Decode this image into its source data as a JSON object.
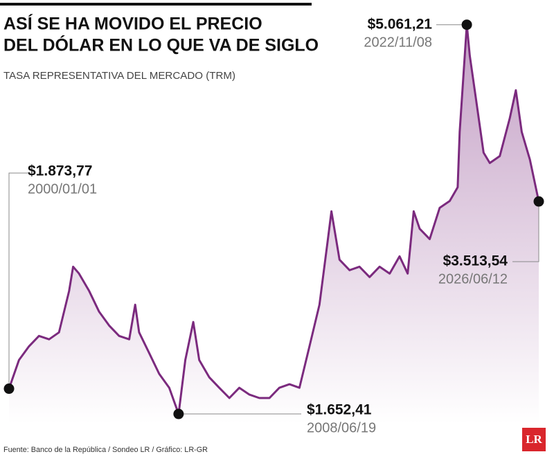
{
  "chart_data": {
    "type": "line",
    "title_lines": [
      "ASÍ SE HA MOVIDO EL PRECIO",
      "DEL DÓLAR EN LO QUE VA DE SIGLO"
    ],
    "subtitle": "TASA REPRESENTATIVA DEL MERCADO (TRM)",
    "source": "Fuente: Banco de la República / Sondeo LR / Gráfico: LR-GR",
    "logo": "LR",
    "series": [
      {
        "color": "#7b2a7e",
        "x": [
          "2000/01/01",
          "2000/07/01",
          "2001/01/01",
          "2001/07/01",
          "2002/01/01",
          "2002/07/01",
          "2003/01/01",
          "2003/03/15",
          "2003/07/01",
          "2004/01/01",
          "2004/07/01",
          "2005/01/01",
          "2005/07/01",
          "2006/01/01",
          "2006/04/20",
          "2006/07/01",
          "2007/01/01",
          "2007/07/01",
          "2008/01/01",
          "2008/06/19",
          "2008/10/20",
          "2009/03/15",
          "2009/07/01",
          "2010/01/01",
          "2010/07/01",
          "2011/01/01",
          "2011/07/01",
          "2012/01/01",
          "2012/07/01",
          "2013/01/01",
          "2013/07/01",
          "2014/01/01",
          "2014/07/01",
          "2015/01/01",
          "2015/07/01",
          "2015/11/25",
          "2016/02/05",
          "2016/07/01",
          "2017/01/01",
          "2017/07/01",
          "2018/01/01",
          "2018/07/01",
          "2019/01/01",
          "2019/07/01",
          "2019/11/25",
          "2020/03/15",
          "2020/07/01",
          "2021/01/01",
          "2021/07/01",
          "2022/01/01",
          "2022/05/25",
          "2022/07/01",
          "2022/11/08",
          "2023/01/01",
          "2023/04/20",
          "2023/09/10",
          "2024/01/01",
          "2024/07/01",
          "2025/01/01",
          "2025/04/20",
          "2025/08/05",
          "2026/01/01",
          "2026/06/12"
        ],
        "values": [
          1873.77,
          2125,
          2245,
          2336,
          2306,
          2367,
          2730,
          2942,
          2882,
          2730,
          2548,
          2427,
          2336,
          2306,
          2609,
          2367,
          2185,
          2004,
          1882,
          1652.41,
          2125,
          2458,
          2125,
          1973,
          1882,
          1792,
          1882,
          1822,
          1792,
          1792,
          1882,
          1913,
          1882,
          2245,
          2609,
          3154,
          3427,
          3003,
          2912,
          2942,
          2851,
          2942,
          2882,
          3033,
          2882,
          3427,
          3275,
          3184,
          3457,
          3517,
          3638,
          4122,
          5061.21,
          4789,
          4425,
          3941,
          3850,
          3911,
          4244,
          4487,
          4122,
          3880,
          3513.54
        ]
      }
    ],
    "annotations": [
      {
        "x": "2000/01/01",
        "value": 1873.77,
        "value_label": "$1.873,77",
        "date_label": "2000/01/01"
      },
      {
        "x": "2008/06/19",
        "value": 1652.41,
        "value_label": "$1.652,41",
        "date_label": "2008/06/19"
      },
      {
        "x": "2022/11/08",
        "value": 5061.21,
        "value_label": "$5.061,21",
        "date_label": "2022/11/08"
      },
      {
        "x": "2026/06/12",
        "value": 3513.54,
        "value_label": "$3.513,54",
        "date_label": "2026/06/12"
      }
    ],
    "ylim": [
      1600,
      5100
    ]
  }
}
